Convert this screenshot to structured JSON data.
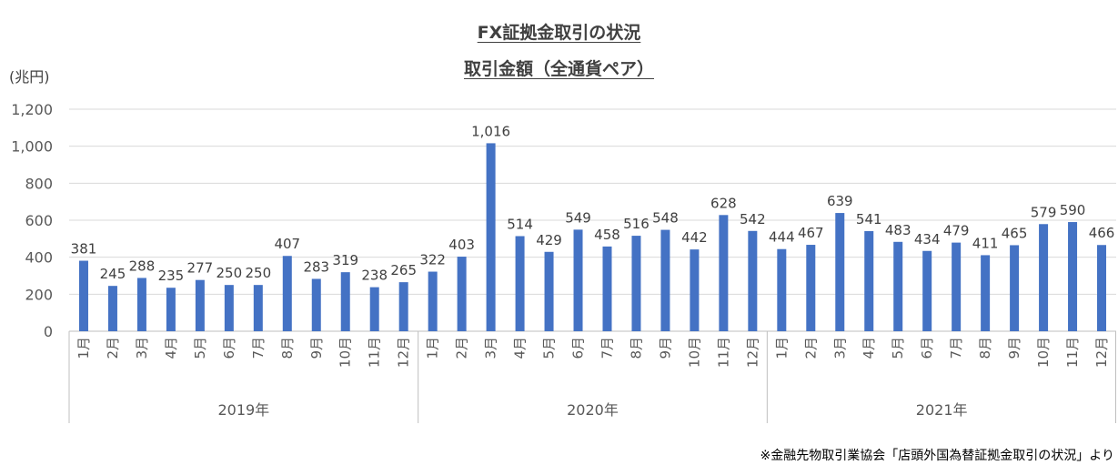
{
  "chart_data": {
    "type": "bar",
    "title": "FX証拠金取引の状況",
    "subtitle": "取引金額（全通貨ペア）",
    "ylabel": "(兆円)",
    "ylim": [
      0,
      1200
    ],
    "yticks": [
      "0",
      "200",
      "400",
      "600",
      "800",
      "1,000",
      "1,200"
    ],
    "ytick_values": [
      0,
      200,
      400,
      600,
      800,
      1000,
      1200
    ],
    "grid": true,
    "bar_color": "#4472C4",
    "months": [
      "1月",
      "2月",
      "3月",
      "4月",
      "5月",
      "6月",
      "7月",
      "8月",
      "9月",
      "10月",
      "11月",
      "12月"
    ],
    "groups": [
      {
        "year": "2019年",
        "values": [
          381,
          245,
          288,
          235,
          277,
          250,
          250,
          407,
          283,
          319,
          238,
          265
        ],
        "labels": [
          "381",
          "245",
          "288",
          "235",
          "277",
          "250",
          "250",
          "407",
          "283",
          "319",
          "238",
          "265"
        ]
      },
      {
        "year": "2020年",
        "values": [
          322,
          403,
          1016,
          514,
          429,
          549,
          458,
          516,
          548,
          442,
          628,
          542
        ],
        "labels": [
          "322",
          "403",
          "1,016",
          "514",
          "429",
          "549",
          "458",
          "516",
          "548",
          "442",
          "628",
          "542"
        ]
      },
      {
        "year": "2021年",
        "values": [
          444,
          467,
          639,
          541,
          483,
          434,
          479,
          411,
          465,
          579,
          590,
          466
        ],
        "labels": [
          "444",
          "467",
          "639",
          "541",
          "483",
          "434",
          "479",
          "411",
          "465",
          "579",
          "590",
          "466"
        ]
      }
    ]
  },
  "source": "※金融先物取引業協会「店頭外国為替証拠金取引の状況」より"
}
